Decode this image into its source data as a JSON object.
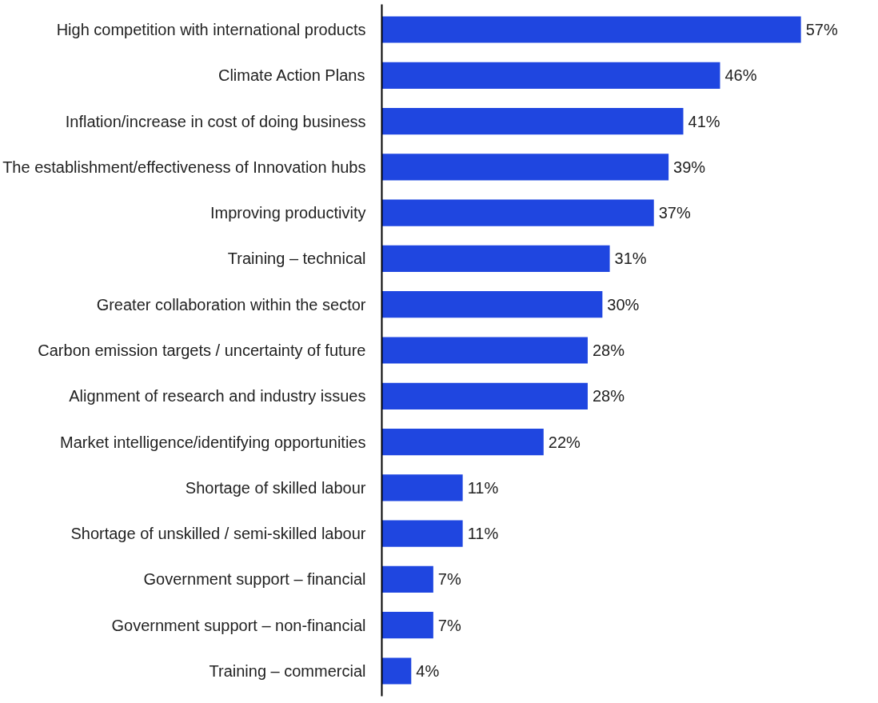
{
  "chart_data": {
    "type": "bar",
    "orientation": "horizontal",
    "color": "#1f46e0",
    "categories": [
      "High competition with international products",
      "Climate Action Plans",
      "Inflation/increase in cost of doing business",
      "The establishment/effectiveness of Innovation hubs",
      "Improving productivity",
      "Training – technical",
      "Greater collaboration within the sector",
      "Carbon emission targets / uncertainty of future",
      "Alignment of research and industry issues",
      "Market intelligence/identifying opportunities",
      "Shortage of skilled labour",
      "Shortage of unskilled / semi-skilled labour",
      "Government support – financial",
      "Government support – non-financial",
      "Training – commercial"
    ],
    "values": [
      57,
      46,
      41,
      39,
      37,
      31,
      30,
      28,
      28,
      22,
      11,
      11,
      7,
      7,
      4
    ],
    "value_labels": [
      "57%",
      "46%",
      "41%",
      "39%",
      "37%",
      "31%",
      "30%",
      "28%",
      "28%",
      "22%",
      "11%",
      "11%",
      "7%",
      "7%",
      "4%"
    ],
    "grid": false
  }
}
